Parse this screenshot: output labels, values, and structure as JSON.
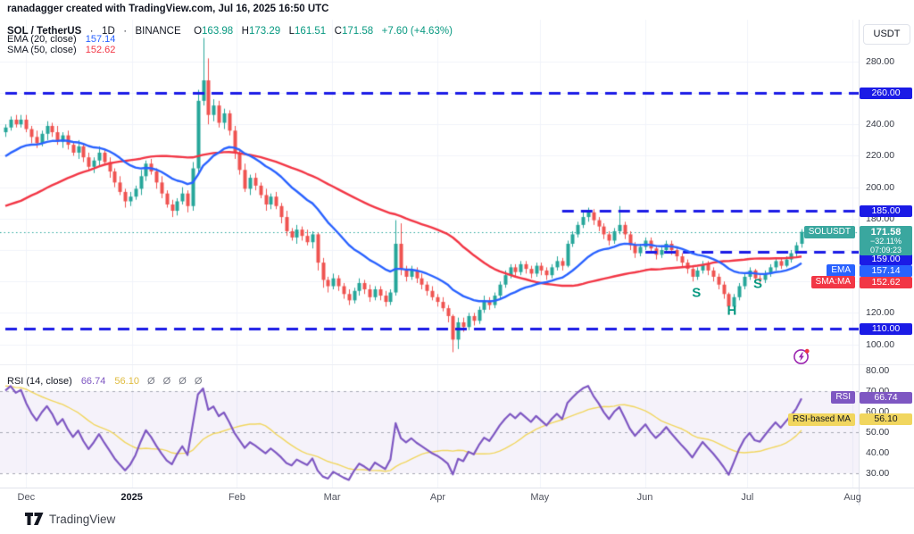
{
  "header": {
    "attribution": "ranadagger created with TradingView.com, Jul 16, 2025 16:50 UTC"
  },
  "legend": {
    "symbol": "SOL / TetherUS",
    "sep1": "·",
    "timeframe": "1D",
    "sep2": "·",
    "exchange": "BINANCE",
    "ohlc": {
      "o_label": "O",
      "o": "163.98",
      "h_label": "H",
      "h": "173.29",
      "l_label": "L",
      "l": "161.51",
      "c_label": "C",
      "c": "171.58",
      "change": "+7.60 (+4.63%)"
    },
    "ema_label": "EMA (20, close)",
    "ema_value": "157.14",
    "sma_label": "SMA (50, close)",
    "sma_value": "152.62"
  },
  "rsi_legend": {
    "label": "RSI (14, close)",
    "rsi_value": "66.74",
    "ma_value": "56.10",
    "hidden_values": [
      "Ø",
      "Ø",
      "Ø",
      "Ø"
    ]
  },
  "price_axis": {
    "currency_button": "USDT",
    "plain_labels": [
      {
        "text": "280.00",
        "price": 280
      },
      {
        "text": "240.00",
        "price": 240
      },
      {
        "text": "220.00",
        "price": 220
      },
      {
        "text": "200.00",
        "price": 200
      },
      {
        "text": "180.00",
        "price": 180
      },
      {
        "text": "120.00",
        "price": 120
      },
      {
        "text": "100.00",
        "price": 100
      }
    ],
    "level_labels": [
      {
        "text": "260.00",
        "price": 260
      },
      {
        "text": "185.00",
        "price": 185
      },
      {
        "text": "159.00",
        "price": 159
      },
      {
        "text": "110.00",
        "price": 110
      }
    ],
    "price_box": {
      "tag": "SOLUSDT",
      "price": "171.58",
      "change_pct": "−32.11%",
      "countdown": "07:09:23"
    },
    "ema_box": {
      "tag": "EMA",
      "text": "157.14",
      "price": 157.14
    },
    "sma_box": {
      "tag": "SMA:MA",
      "text": "152.62",
      "price": 152.62
    }
  },
  "rsi_axis": {
    "plain_labels": [
      {
        "text": "80.00",
        "value": 80
      },
      {
        "text": "70.00",
        "value": 70
      },
      {
        "text": "60.00",
        "value": 60
      },
      {
        "text": "50.00",
        "value": 50
      },
      {
        "text": "40.00",
        "value": 40
      },
      {
        "text": "30.00",
        "value": 30
      }
    ],
    "rsi_box": {
      "tag": "RSI",
      "text": "66.74",
      "value": 66.74
    },
    "ma_box": {
      "tag": "RSI-based MA",
      "text": "56.10",
      "value": 56.1
    }
  },
  "time_axis": {
    "ticks": [
      {
        "label": "Dec",
        "i": 4
      },
      {
        "label": "2025",
        "i": 24.3,
        "year": true
      },
      {
        "label": "Feb",
        "i": 44.5
      },
      {
        "label": "Mar",
        "i": 62.8
      },
      {
        "label": "Apr",
        "i": 83.1
      },
      {
        "label": "May",
        "i": 102.7
      },
      {
        "label": "Jun",
        "i": 122.9
      },
      {
        "label": "Jul",
        "i": 142.6
      },
      {
        "label": "Aug",
        "i": 162.8
      }
    ]
  },
  "annotations": [
    {
      "text": "S",
      "i": 132.8,
      "price": 133
    },
    {
      "text": "H",
      "i": 139.6,
      "price": 121.5
    },
    {
      "text": "S",
      "i": 144.6,
      "price": 138.5
    }
  ],
  "footer": {
    "brand": "TradingView"
  },
  "colors": {
    "up": "#26a69a",
    "down": "#ef5350",
    "ema": "#2962ff",
    "sma": "#f23645",
    "level": "#1b1be6",
    "rsi": "#7e57c2",
    "rsi_ma": "#f1d65f",
    "band_fill": "rgba(126,87,194,0.08)",
    "band_line": "#a6a9b3",
    "grid": "#f0f3fa",
    "price_line": "#26a69a",
    "teal_box": "#3aa79f",
    "annotation": "#089981",
    "axis_text": "#363a45",
    "flash": "#9c27b0",
    "alert_dot": "#f23645"
  },
  "chart_data": {
    "type": "candlestick+rsi",
    "symbol": "SOLUSDT",
    "exchange": "BINANCE",
    "interval": "1D",
    "last_bar": {
      "open": 163.98,
      "high": 173.29,
      "low": 161.51,
      "close": 171.58,
      "change": "+7.60 (+4.63%)"
    },
    "indicators": {
      "ema_period": 20,
      "sma_period": 50,
      "rsi_period": 14,
      "rsi_ma_period": 14,
      "ema_last": 157.14,
      "sma_last": 152.62,
      "rsi_last": 66.74,
      "rsi_ma_last": 56.1
    },
    "levels": [
      {
        "price": 260,
        "from_index": 0
      },
      {
        "price": 185,
        "from_index": 107
      },
      {
        "price": 159,
        "from_index": 123
      },
      {
        "price": 110,
        "from_index": 0
      }
    ],
    "current_price": 171.58,
    "rsi_bands": [
      70,
      50,
      30
    ],
    "price_grid": [
      100,
      120,
      140,
      160,
      180,
      200,
      220,
      240,
      260,
      280
    ],
    "ylim": [
      90,
      300
    ],
    "rsi_ylim": [
      23,
      82
    ],
    "x_range": [
      "Dec 2024",
      "Aug 2025"
    ],
    "pre_closes": [
      152,
      148,
      155,
      151,
      147,
      153,
      158,
      154,
      150,
      156,
      161,
      157,
      163,
      159,
      155,
      162,
      167,
      172,
      168,
      174,
      170,
      176,
      181,
      177,
      183,
      188,
      193,
      189,
      195,
      201,
      207,
      203,
      210,
      216,
      222,
      218,
      225,
      231,
      227,
      233,
      238,
      234,
      228,
      230,
      234,
      232
    ],
    "candles": [
      [
        235,
        240,
        232,
        238
      ],
      [
        238,
        245,
        236,
        243
      ],
      [
        243,
        246,
        238,
        240
      ],
      [
        240,
        246,
        238,
        243
      ],
      [
        243,
        246,
        235,
        237
      ],
      [
        237,
        239,
        228,
        232
      ],
      [
        232,
        236,
        225,
        228
      ],
      [
        228,
        236,
        226,
        234
      ],
      [
        234,
        242,
        230,
        239
      ],
      [
        239,
        241,
        232,
        235
      ],
      [
        235,
        239,
        227,
        229
      ],
      [
        229,
        235,
        225,
        233
      ],
      [
        233,
        236,
        224,
        227
      ],
      [
        227,
        229,
        220,
        222
      ],
      [
        222,
        230,
        218,
        226
      ],
      [
        226,
        228,
        216,
        219
      ],
      [
        219,
        222,
        211,
        213
      ],
      [
        213,
        219,
        209,
        217
      ],
      [
        217,
        226,
        214,
        222
      ],
      [
        222,
        224,
        214,
        216
      ],
      [
        216,
        219,
        206,
        210
      ],
      [
        210,
        212,
        200,
        203
      ],
      [
        203,
        207,
        195,
        197
      ],
      [
        197,
        199,
        187,
        191
      ],
      [
        191,
        197,
        188,
        194
      ],
      [
        194,
        201,
        192,
        199
      ],
      [
        199,
        211,
        195,
        207
      ],
      [
        207,
        217,
        204,
        215
      ],
      [
        215,
        218,
        208,
        210
      ],
      [
        210,
        212,
        199,
        203
      ],
      [
        203,
        207,
        193,
        196
      ],
      [
        196,
        198,
        187,
        189
      ],
      [
        189,
        192,
        181,
        185
      ],
      [
        185,
        193,
        182,
        191
      ],
      [
        191,
        200,
        189,
        196
      ],
      [
        196,
        198,
        184,
        188
      ],
      [
        188,
        216,
        185,
        212
      ],
      [
        212,
        262,
        208,
        255
      ],
      [
        255,
        295,
        252,
        268
      ],
      [
        268,
        282,
        240,
        246
      ],
      [
        246,
        256,
        242,
        252
      ],
      [
        252,
        255,
        238,
        241
      ],
      [
        241,
        250,
        237,
        247
      ],
      [
        247,
        249,
        233,
        236
      ],
      [
        236,
        239,
        218,
        222
      ],
      [
        222,
        224,
        208,
        211
      ],
      [
        211,
        215,
        197,
        199
      ],
      [
        199,
        208,
        195,
        206
      ],
      [
        206,
        209,
        198,
        201
      ],
      [
        201,
        203,
        193,
        195
      ],
      [
        195,
        199,
        185,
        189
      ],
      [
        189,
        196,
        186,
        194
      ],
      [
        194,
        197,
        186,
        188
      ],
      [
        188,
        190,
        177,
        181
      ],
      [
        181,
        185,
        169,
        172
      ],
      [
        172,
        174,
        166,
        168
      ],
      [
        168,
        176,
        164,
        173
      ],
      [
        173,
        175,
        166,
        169
      ],
      [
        169,
        173,
        163,
        165
      ],
      [
        165,
        172,
        161,
        170
      ],
      [
        170,
        171,
        147,
        152
      ],
      [
        152,
        155,
        136,
        141
      ],
      [
        141,
        143,
        133,
        137
      ],
      [
        137,
        145,
        135,
        142
      ],
      [
        142,
        144,
        134,
        137
      ],
      [
        137,
        139,
        129,
        132
      ],
      [
        132,
        135,
        125,
        128
      ],
      [
        128,
        136,
        126,
        134
      ],
      [
        134,
        142,
        131,
        139
      ],
      [
        139,
        141,
        132,
        135
      ],
      [
        135,
        138,
        127,
        130
      ],
      [
        130,
        137,
        128,
        135
      ],
      [
        135,
        137,
        128,
        131
      ],
      [
        131,
        134,
        124,
        127
      ],
      [
        127,
        135,
        125,
        133
      ],
      [
        133,
        179,
        131,
        164
      ],
      [
        164,
        177,
        144,
        148
      ],
      [
        148,
        150,
        140,
        143
      ],
      [
        143,
        150,
        141,
        147
      ],
      [
        147,
        149,
        139,
        142
      ],
      [
        142,
        145,
        135,
        138
      ],
      [
        138,
        140,
        131,
        134
      ],
      [
        134,
        137,
        128,
        130
      ],
      [
        130,
        132,
        124,
        127
      ],
      [
        127,
        130,
        121,
        123
      ],
      [
        123,
        125,
        114,
        118
      ],
      [
        118,
        119,
        95,
        103
      ],
      [
        103,
        117,
        97,
        114
      ],
      [
        114,
        117,
        108,
        111
      ],
      [
        111,
        120,
        109,
        118
      ],
      [
        118,
        120,
        112,
        115
      ],
      [
        115,
        124,
        113,
        122
      ],
      [
        122,
        131,
        120,
        128
      ],
      [
        128,
        130,
        122,
        125
      ],
      [
        125,
        133,
        123,
        131
      ],
      [
        131,
        140,
        129,
        138
      ],
      [
        138,
        147,
        136,
        144
      ],
      [
        144,
        151,
        142,
        149
      ],
      [
        149,
        151,
        143,
        146
      ],
      [
        146,
        153,
        144,
        151
      ],
      [
        151,
        153,
        145,
        148
      ],
      [
        148,
        150,
        142,
        145
      ],
      [
        145,
        152,
        143,
        150
      ],
      [
        150,
        152,
        144,
        147
      ],
      [
        147,
        149,
        141,
        144
      ],
      [
        144,
        151,
        142,
        149
      ],
      [
        149,
        156,
        147,
        153
      ],
      [
        153,
        155,
        147,
        150
      ],
      [
        150,
        166,
        149,
        164
      ],
      [
        164,
        172,
        162,
        170
      ],
      [
        170,
        178,
        168,
        176
      ],
      [
        176,
        184,
        174,
        181
      ],
      [
        181,
        187,
        178,
        184
      ],
      [
        184,
        186,
        176,
        179
      ],
      [
        179,
        181,
        172,
        175
      ],
      [
        175,
        177,
        167,
        170
      ],
      [
        170,
        172,
        163,
        166
      ],
      [
        166,
        174,
        164,
        172
      ],
      [
        172,
        188,
        170,
        176
      ],
      [
        176,
        178,
        167,
        170
      ],
      [
        170,
        172,
        160,
        163
      ],
      [
        163,
        165,
        155,
        158
      ],
      [
        158,
        164,
        156,
        162
      ],
      [
        162,
        168,
        160,
        166
      ],
      [
        166,
        168,
        158,
        161
      ],
      [
        161,
        163,
        154,
        157
      ],
      [
        157,
        163,
        155,
        160
      ],
      [
        160,
        166,
        158,
        164
      ],
      [
        164,
        166,
        157,
        160
      ],
      [
        160,
        162,
        153,
        156
      ],
      [
        156,
        158,
        149,
        152
      ],
      [
        152,
        154,
        145,
        148
      ],
      [
        148,
        150,
        140,
        143
      ],
      [
        143,
        149,
        141,
        147
      ],
      [
        147,
        153,
        145,
        151
      ],
      [
        151,
        153,
        144,
        147
      ],
      [
        147,
        149,
        140,
        143
      ],
      [
        143,
        145,
        135,
        138
      ],
      [
        138,
        140,
        129,
        132
      ],
      [
        132,
        133,
        119,
        124
      ],
      [
        124,
        132,
        122,
        130
      ],
      [
        130,
        139,
        128,
        137
      ],
      [
        137,
        145,
        135,
        143
      ],
      [
        143,
        149,
        141,
        147
      ],
      [
        147,
        148,
        140,
        142
      ],
      [
        142,
        144,
        138,
        141
      ],
      [
        141,
        147,
        139,
        145
      ],
      [
        145,
        151,
        143,
        149
      ],
      [
        149,
        155,
        147,
        153
      ],
      [
        153,
        155,
        148,
        150
      ],
      [
        150,
        156,
        149,
        154
      ],
      [
        154,
        160,
        152,
        158
      ],
      [
        158,
        165,
        156,
        163
      ],
      [
        164,
        173.29,
        161.51,
        171.58
      ]
    ]
  }
}
